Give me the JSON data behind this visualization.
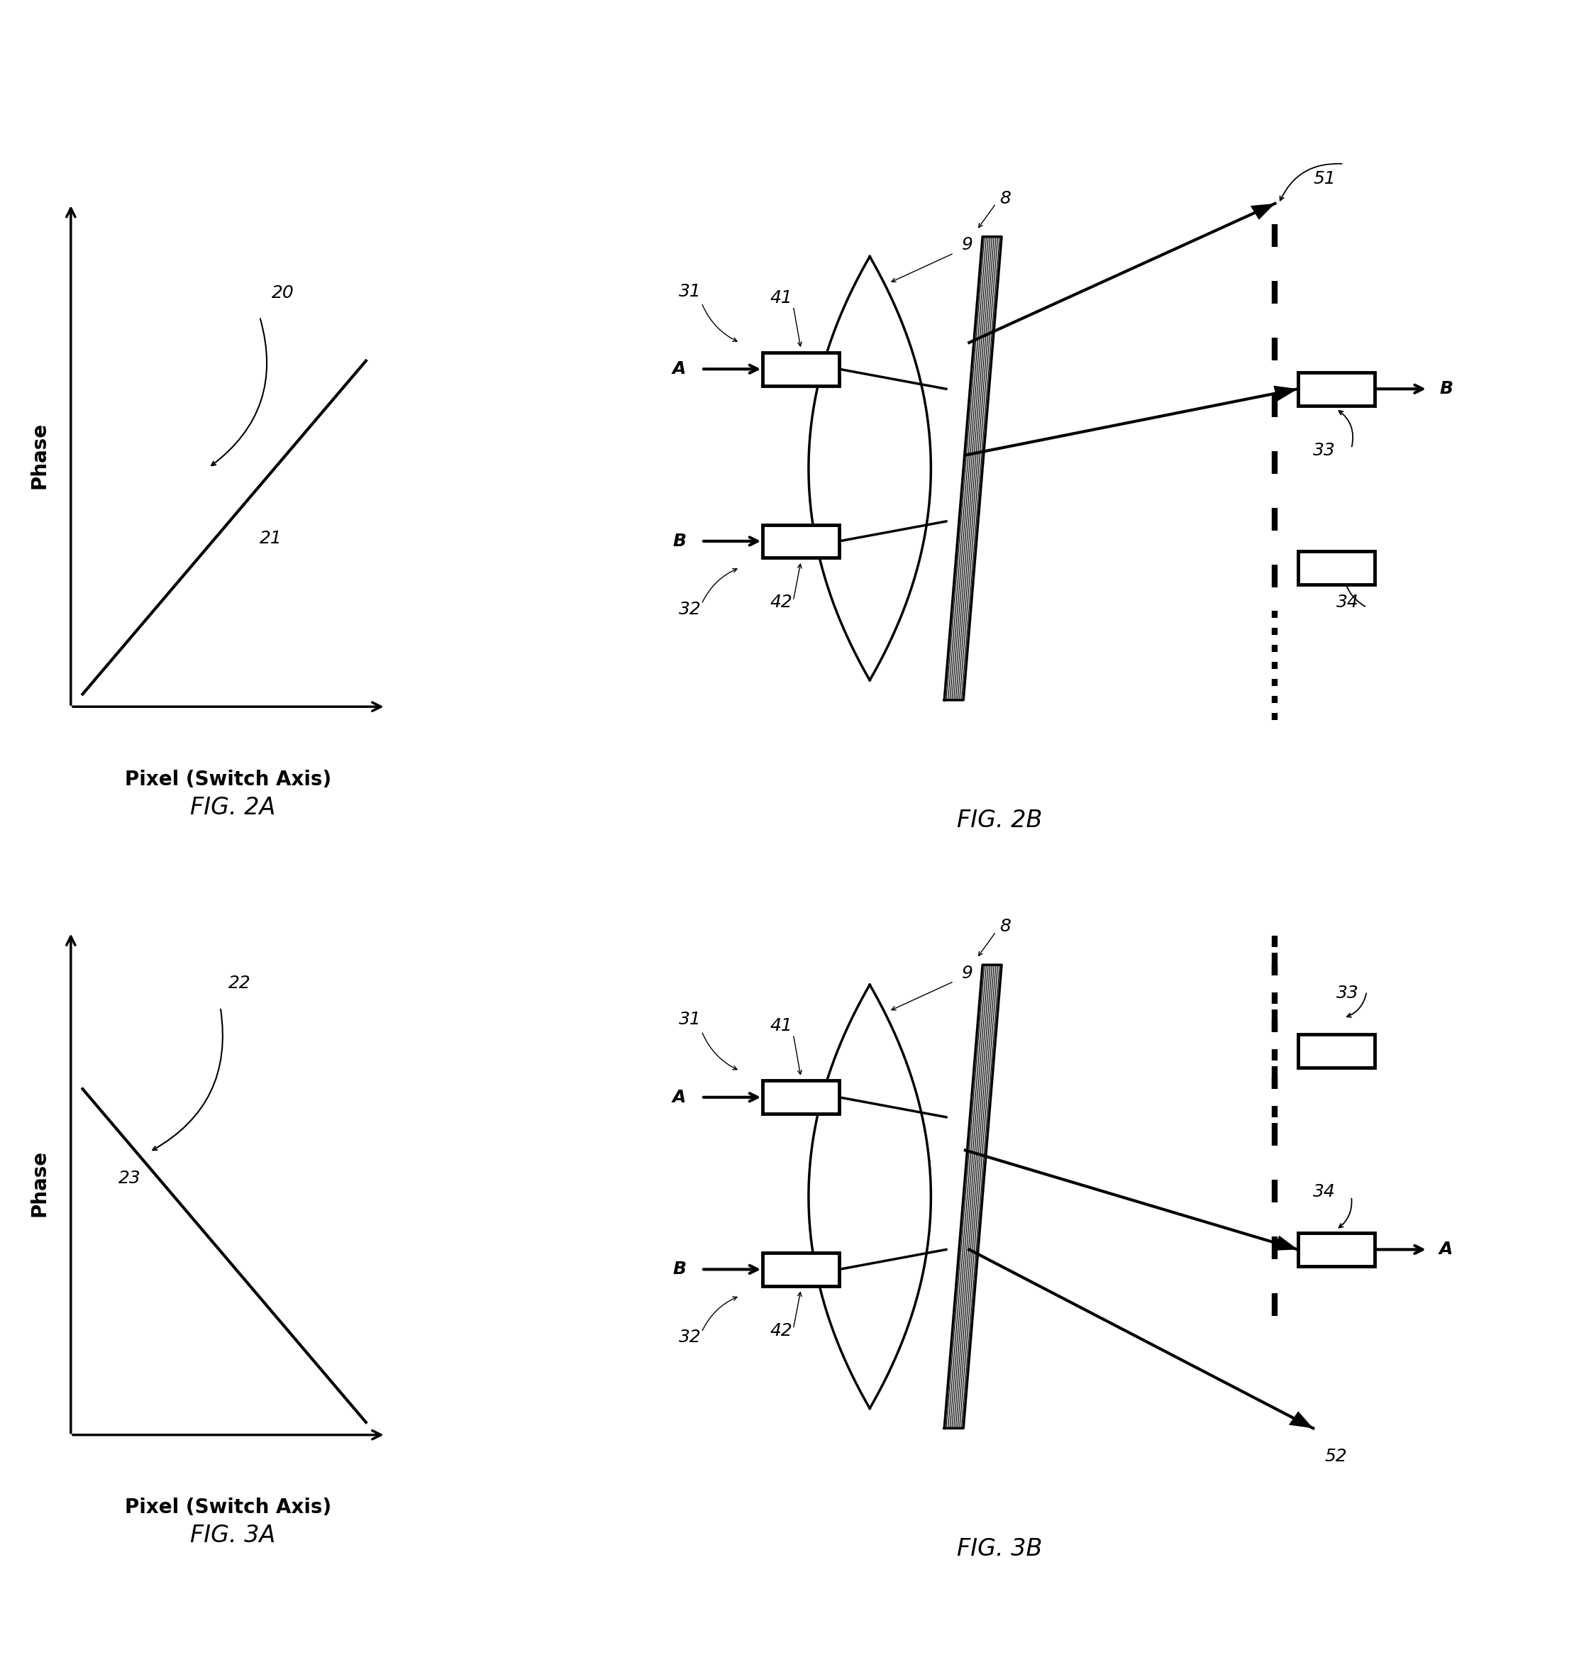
{
  "bg_color": "#ffffff",
  "fig_width": 22.19,
  "fig_height": 23.33,
  "fig2a_label": "FIG. 2A",
  "fig2b_label": "FIG. 2B",
  "fig3a_label": "FIG. 3A",
  "fig3b_label": "FIG. 3B",
  "xlabel": "Pixel (Switch Axis)",
  "ylabel": "Phase",
  "ref_20": "20",
  "ref_21": "21",
  "ref_22": "22",
  "ref_23": "23",
  "ref_8": "8",
  "ref_9": "9",
  "ref_31": "31",
  "ref_32": "32",
  "ref_33": "33",
  "ref_34": "34",
  "ref_41": "41",
  "ref_42": "42",
  "ref_51": "51",
  "ref_52": "52",
  "ref_A": "A",
  "ref_B": "B"
}
